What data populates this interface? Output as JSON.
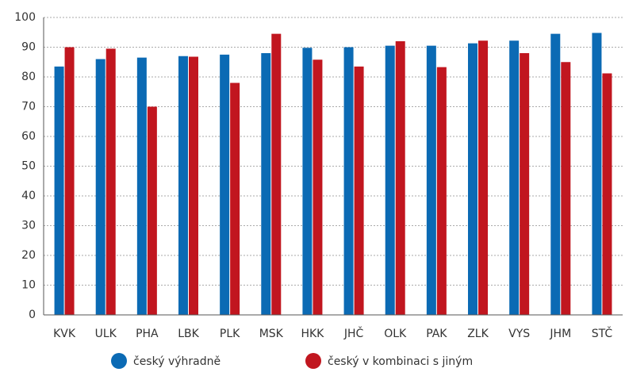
{
  "chart_data": {
    "type": "bar",
    "categories": [
      "KVK",
      "ULK",
      "PHA",
      "LBK",
      "PLK",
      "MSK",
      "HKK",
      "JHČ",
      "OLK",
      "PAK",
      "ZLK",
      "VYS",
      "JHM",
      "STČ"
    ],
    "series": [
      {
        "name": "český výhradně",
        "color": "#0b6ab4",
        "values": [
          83.5,
          86,
          86.5,
          87,
          87.5,
          88,
          89.8,
          90,
          90.5,
          90.5,
          91.3,
          92.2,
          94.5,
          94.8
        ]
      },
      {
        "name": "český v kombinaci s jiným",
        "color": "#c1161f",
        "values": [
          90,
          89.5,
          70,
          86.8,
          78,
          94.5,
          85.8,
          83.5,
          92,
          83.3,
          92.2,
          88,
          85,
          81.2
        ]
      }
    ],
    "ylim": [
      0,
      100
    ],
    "yticks": [
      0,
      10,
      20,
      30,
      40,
      50,
      60,
      70,
      80,
      90,
      100
    ],
    "grid": true,
    "legend": "bottom"
  }
}
